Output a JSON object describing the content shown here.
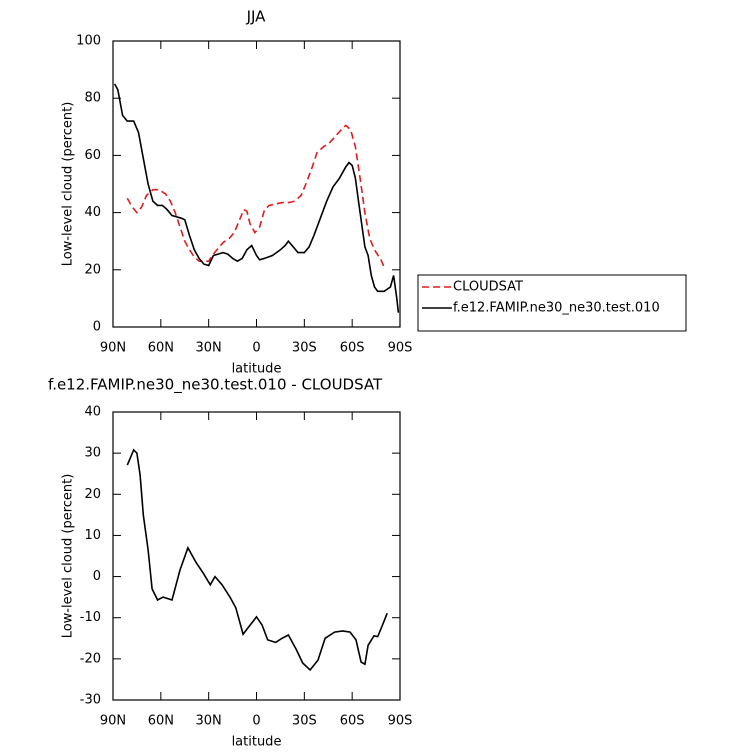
{
  "chart_data": [
    {
      "type": "line",
      "title": "JJA",
      "xlabel": "latitude",
      "ylabel": "Low-level cloud (percent)",
      "xlim": [
        90,
        -90
      ],
      "xticks": [
        {
          "value": 90,
          "label": "90N"
        },
        {
          "value": 60,
          "label": "60N"
        },
        {
          "value": 30,
          "label": "30N"
        },
        0,
        {
          "value": -30,
          "label": "30S"
        },
        {
          "value": -60,
          "label": "60S"
        },
        {
          "value": -90,
          "label": "90S"
        }
      ],
      "ylim": [
        0,
        100
      ],
      "yticks": [
        0,
        20,
        40,
        60,
        80,
        100
      ],
      "legend": "right",
      "series": [
        {
          "name": "CLOUDSAT",
          "color": "#e41a1c",
          "dashed": true,
          "x": [
            81,
            78,
            75,
            72,
            69,
            65,
            61,
            57,
            54,
            51,
            48,
            45,
            42,
            39,
            36,
            33,
            30,
            27,
            24,
            21,
            17,
            14,
            11,
            8,
            6,
            4,
            1,
            -2,
            -5,
            -8,
            -12,
            -16,
            -20,
            -24,
            -28,
            -31,
            -35,
            -38,
            -42,
            -46,
            -50,
            -54,
            -56,
            -59,
            -62,
            -65,
            -68,
            -71,
            -74,
            -78,
            -80
          ],
          "values": [
            45,
            42,
            40,
            42,
            46,
            48,
            48,
            46.5,
            44,
            40,
            35,
            30,
            27,
            24.5,
            23,
            23,
            23,
            25.5,
            27.5,
            29.5,
            31,
            33,
            37,
            41,
            40.5,
            36,
            33,
            35,
            41,
            42.5,
            43,
            43.5,
            43.5,
            44,
            46,
            50,
            56,
            61,
            63,
            64.5,
            67,
            69.5,
            70.5,
            69,
            63,
            52,
            40,
            31,
            27,
            23.5,
            21
          ]
        },
        {
          "name": "f.e12.FAMIP.ne30_ne30.test.010",
          "color": "#000000",
          "dashed": false,
          "x": [
            89,
            87,
            84,
            81,
            77,
            74,
            71,
            68,
            65,
            62,
            59,
            56,
            53,
            50,
            47,
            45,
            42,
            39,
            36,
            33,
            30,
            27,
            24,
            21,
            18,
            15,
            12,
            9,
            6,
            3,
            0,
            -2,
            -5,
            -10,
            -15,
            -18,
            -20,
            -23,
            -26,
            -30,
            -33,
            -36,
            -40,
            -44,
            -48,
            -52,
            -56,
            -58,
            -60,
            -62,
            -64,
            -66,
            -68,
            -70,
            -72,
            -74,
            -76,
            -80,
            -84,
            -86,
            -88,
            -89
          ],
          "values": [
            85,
            83,
            74,
            72,
            72,
            68,
            59,
            50,
            44,
            42.5,
            42.5,
            41,
            39,
            38.5,
            38,
            37.5,
            32,
            27,
            24,
            22,
            21.5,
            25,
            25.5,
            26,
            25.5,
            24,
            23,
            24,
            27,
            28.5,
            25,
            23.5,
            24,
            25,
            27,
            28.5,
            30,
            28,
            26,
            26,
            28,
            32,
            38,
            44,
            49,
            52,
            56,
            57.5,
            56.5,
            52,
            44,
            36,
            28,
            25,
            18,
            14,
            12.5,
            12.5,
            14,
            18,
            10,
            5
          ]
        }
      ]
    },
    {
      "type": "line",
      "title": "f.e12.FAMIP.ne30_ne30.test.010 - CLOUDSAT",
      "xlabel": "latitude",
      "ylabel": "Low-level cloud (percent)",
      "xlim": [
        90,
        -90
      ],
      "xticks": [
        {
          "value": 90,
          "label": "90N"
        },
        {
          "value": 60,
          "label": "60N"
        },
        {
          "value": 30,
          "label": "30N"
        },
        0,
        {
          "value": -30,
          "label": "30S"
        },
        {
          "value": -60,
          "label": "60S"
        },
        {
          "value": -90,
          "label": "90S"
        }
      ],
      "ylim": [
        -30,
        40
      ],
      "yticks": [
        -30,
        -20,
        -10,
        0,
        10,
        20,
        30,
        40
      ],
      "series": [
        {
          "color": "#000000",
          "dashed": false,
          "x": [
            81,
            77,
            75,
            73,
            71,
            68,
            65.5,
            62,
            58.6,
            53,
            48,
            43,
            38,
            33.5,
            29,
            26,
            21.6,
            16.6,
            13,
            8.4,
            4,
            0,
            -3.5,
            -7,
            -12,
            -16,
            -20,
            -25,
            -29,
            -33.6,
            -38.6,
            -43,
            -49,
            -54,
            -58.7,
            -62.4,
            -65.6,
            -68,
            -70,
            -73.7,
            -76,
            -79,
            -82
          ],
          "values": [
            27.1,
            30.8,
            30,
            24.7,
            15,
            6.5,
            -3,
            -5.7,
            -5,
            -5.7,
            1.6,
            7,
            3.5,
            0.9,
            -2,
            0,
            -2,
            -5,
            -7.6,
            -14,
            -11.8,
            -9.8,
            -11.8,
            -15.4,
            -16,
            -15,
            -14.2,
            -17.8,
            -21,
            -22.7,
            -20.3,
            -15,
            -13.5,
            -13.2,
            -13.5,
            -15.4,
            -20.8,
            -21.3,
            -16.7,
            -14.4,
            -14.6,
            -11.8,
            -8.9
          ]
        }
      ]
    }
  ]
}
